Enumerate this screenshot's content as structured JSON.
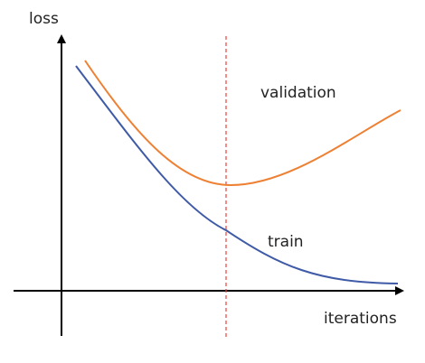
{
  "y_axis_label": "loss",
  "x_axis_label": "iterations",
  "curves": [
    {
      "label": "validation"
    },
    {
      "label": "train"
    }
  ]
}
